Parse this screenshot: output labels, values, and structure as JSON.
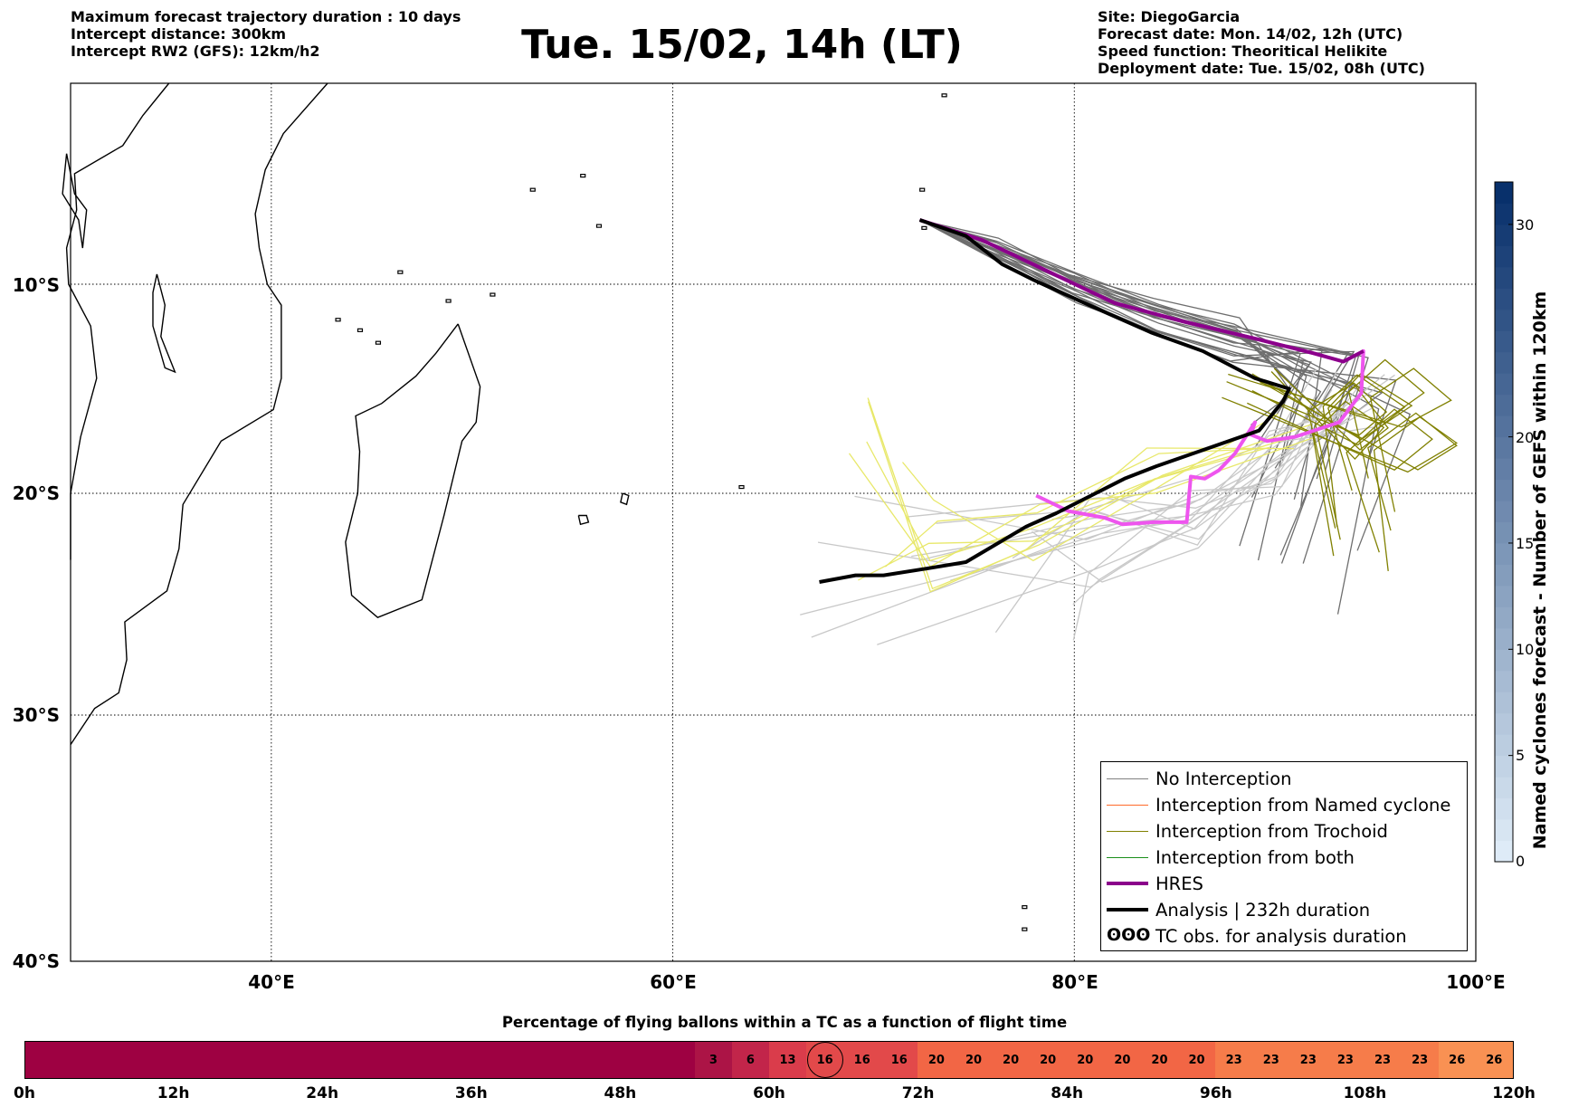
{
  "header": {
    "left_lines": [
      "Maximum forecast trajectory duration : 10 days",
      "Intercept distance: 300km",
      "Intercept RW2 (GFS):  12km/h2"
    ],
    "title": "Tue. 15/02, 14h (LT)",
    "right_lines": [
      "Site: DiegoGarcia",
      "Forecast date: Mon. 14/02, 12h (UTC)",
      "Speed function: Theoritical Helikite",
      "Deployment date: Tue. 15/02, 08h (UTC)"
    ]
  },
  "map": {
    "lon_range": [
      30,
      100
    ],
    "lat_range": [
      -40,
      0
    ],
    "lat_labels": [
      "10°S",
      "20°S",
      "30°S",
      "40°S"
    ],
    "lon_labels": [
      "40°E",
      "60°E",
      "80°E",
      "100°E"
    ],
    "grid": "dotted",
    "tracks": {
      "analysis": [
        [
          72.3,
          -6.8
        ],
        [
          74.6,
          -7.6
        ],
        [
          76.4,
          -9.0
        ],
        [
          78,
          -9.8
        ],
        [
          81.2,
          -11.2
        ],
        [
          83.8,
          -12.3
        ],
        [
          86.4,
          -13.2
        ],
        [
          89,
          -14.5
        ],
        [
          90.7,
          -15
        ],
        [
          90.4,
          -15.6
        ],
        [
          89.2,
          -17
        ],
        [
          86.5,
          -17.9
        ],
        [
          84.1,
          -18.7
        ],
        [
          82.5,
          -19.3
        ],
        [
          79.1,
          -20.9
        ],
        [
          77.6,
          -21.5
        ],
        [
          74.6,
          -23.1
        ],
        [
          72.6,
          -23.4
        ],
        [
          70.5,
          -23.7
        ],
        [
          69.1,
          -23.7
        ],
        [
          67.3,
          -24
        ]
      ],
      "hres": [
        [
          72.3,
          -6.8
        ],
        [
          75.4,
          -7.8
        ],
        [
          79.4,
          -9.7
        ],
        [
          82,
          -10.9
        ],
        [
          85.5,
          -11.8
        ],
        [
          89,
          -12.6
        ],
        [
          91.9,
          -13.3
        ],
        [
          93.4,
          -13.7
        ],
        [
          94.4,
          -13.2
        ],
        [
          94.3,
          -15.2
        ],
        [
          93.2,
          -16.6
        ],
        [
          91,
          -17.3
        ],
        [
          89.6,
          -17.5
        ],
        [
          88.8,
          -17.2
        ],
        [
          89,
          -16.6
        ],
        [
          88,
          -18.1
        ],
        [
          87.2,
          -18.9
        ],
        [
          86.5,
          -19.3
        ],
        [
          85.8,
          -19.2
        ],
        [
          85.6,
          -21.3
        ],
        [
          84,
          -21.3
        ],
        [
          82.4,
          -21.4
        ],
        [
          81.5,
          -21.1
        ],
        [
          79.7,
          -20.8
        ],
        [
          78.1,
          -20.1
        ]
      ]
    }
  },
  "legend": {
    "items": [
      {
        "label": "No Interception",
        "color": "#808080"
      },
      {
        "label": "Interception from Named cyclone",
        "color": "#ff6a2a"
      },
      {
        "label": "Interception from Trochoid",
        "color": "#808000"
      },
      {
        "label": "Interception from both",
        "color": "#1a8f1a"
      },
      {
        "label": "HRES",
        "color": "#8b008b"
      },
      {
        "label": "Analysis | 232h duration",
        "color": "#000000"
      },
      {
        "label": "TC obs. for analysis duration",
        "glyph": "ʘʘʘ"
      }
    ]
  },
  "colorbar": {
    "label": "Named cyclones forecast - Number of GEFS within 120km",
    "ticks": [
      0,
      5,
      10,
      15,
      20,
      30
    ],
    "range": [
      0,
      32
    ]
  },
  "hbar": {
    "title": "Percentage of flying ballons within a TC as a function of flight time",
    "tick_labels": [
      "0h",
      "12h",
      "24h",
      "36h",
      "48h",
      "60h",
      "72h",
      "84h",
      "96h",
      "108h",
      "120h"
    ],
    "segments": [
      {
        "value": "",
        "from_h": 0,
        "to_h": 54,
        "color": "#9e0142"
      },
      {
        "value": "3",
        "from_h": 54,
        "to_h": 57,
        "color": "#ac1446"
      },
      {
        "value": "6",
        "from_h": 57,
        "to_h": 60,
        "color": "#c2254a"
      },
      {
        "value": "13",
        "from_h": 60,
        "to_h": 63,
        "color": "#da3c4b"
      },
      {
        "value": "16",
        "from_h": 63,
        "to_h": 66,
        "color": "#e2494a",
        "marked": true
      },
      {
        "value": "16",
        "from_h": 66,
        "to_h": 69,
        "color": "#e2494a"
      },
      {
        "value": "16",
        "from_h": 69,
        "to_h": 72,
        "color": "#e2494a"
      },
      {
        "value": "20",
        "from_h": 72,
        "to_h": 75,
        "color": "#f26645"
      },
      {
        "value": "20",
        "from_h": 75,
        "to_h": 78,
        "color": "#f26645"
      },
      {
        "value": "20",
        "from_h": 78,
        "to_h": 81,
        "color": "#f26645"
      },
      {
        "value": "20",
        "from_h": 81,
        "to_h": 84,
        "color": "#f26645"
      },
      {
        "value": "20",
        "from_h": 84,
        "to_h": 87,
        "color": "#f26645"
      },
      {
        "value": "20",
        "from_h": 87,
        "to_h": 90,
        "color": "#f26645"
      },
      {
        "value": "20",
        "from_h": 90,
        "to_h": 93,
        "color": "#f26645"
      },
      {
        "value": "20",
        "from_h": 93,
        "to_h": 96,
        "color": "#f26645"
      },
      {
        "value": "23",
        "from_h": 96,
        "to_h": 99,
        "color": "#f67c4a"
      },
      {
        "value": "23",
        "from_h": 99,
        "to_h": 102,
        "color": "#f67c4a"
      },
      {
        "value": "23",
        "from_h": 102,
        "to_h": 105,
        "color": "#f67c4a"
      },
      {
        "value": "23",
        "from_h": 105,
        "to_h": 108,
        "color": "#f67c4a"
      },
      {
        "value": "23",
        "from_h": 108,
        "to_h": 111,
        "color": "#f67c4a"
      },
      {
        "value": "23",
        "from_h": 111,
        "to_h": 114,
        "color": "#f67c4a"
      },
      {
        "value": "26",
        "from_h": 114,
        "to_h": 117,
        "color": "#f99153"
      },
      {
        "value": "26",
        "from_h": 117,
        "to_h": 120,
        "color": "#f99153"
      }
    ]
  }
}
